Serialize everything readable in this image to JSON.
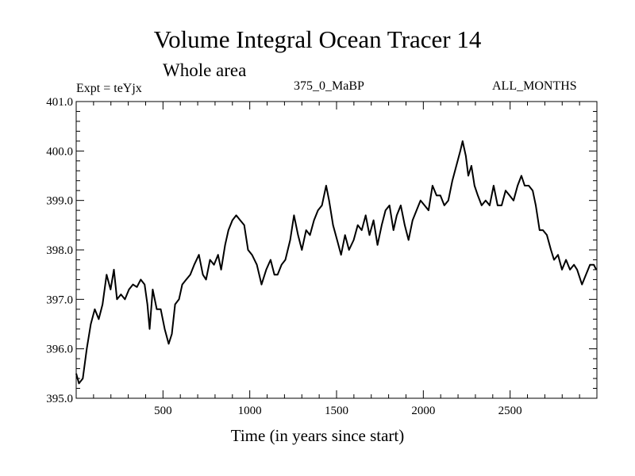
{
  "chart_data": {
    "type": "line",
    "title": "Volume Integral Ocean Tracer 14",
    "subtitle": "Whole area",
    "annotations": {
      "experiment": "Expt = teYjx",
      "run": "375_0_MaBP",
      "months": "ALL_MONTHS"
    },
    "xlabel": "Time (in years since start)",
    "ylabel": "",
    "xlim": [
      0,
      3000
    ],
    "ylim": [
      395.0,
      401.0
    ],
    "xticks": [
      500,
      1000,
      1500,
      2000,
      2500
    ],
    "xtick_labels": [
      "500",
      "1000",
      "1500",
      "2000",
      "2500"
    ],
    "yticks": [
      395,
      396,
      397,
      398,
      399,
      400,
      401
    ],
    "ytick_labels": [
      "395.0",
      "396.0",
      "397.0",
      "398.0",
      "399.0",
      "400.0",
      "401.0"
    ],
    "x_minor_step": 100,
    "y_minor_step": 0.2,
    "grid": false,
    "line_color": "#000000",
    "series": [
      {
        "name": "Tracer 14",
        "x": [
          0,
          16,
          38,
          61,
          84,
          107,
          130,
          152,
          175,
          198,
          217,
          235,
          258,
          281,
          304,
          327,
          350,
          372,
          394,
          410,
          423,
          441,
          464,
          487,
          510,
          533,
          551,
          570,
          592,
          611,
          634,
          657,
          680,
          707,
          730,
          748,
          771,
          794,
          817,
          835,
          858,
          877,
          900,
          922,
          945,
          968,
          990,
          1013,
          1041,
          1068,
          1095,
          1120,
          1142,
          1160,
          1183,
          1205,
          1233,
          1255,
          1278,
          1300,
          1325,
          1347,
          1370,
          1393,
          1416,
          1440,
          1457,
          1480,
          1503,
          1526,
          1549,
          1572,
          1599,
          1622,
          1645,
          1668,
          1690,
          1713,
          1736,
          1760,
          1782,
          1805,
          1828,
          1847,
          1870,
          1893,
          1915,
          1938,
          1961,
          1984,
          2007,
          2030,
          2053,
          2076,
          2098,
          2121,
          2144,
          2167,
          2190,
          2213,
          2226,
          2245,
          2259,
          2277,
          2295,
          2314,
          2336,
          2359,
          2382,
          2405,
          2428,
          2451,
          2474,
          2497,
          2520,
          2543,
          2565,
          2584,
          2607,
          2630,
          2648,
          2670,
          2689,
          2712,
          2735,
          2753,
          2776,
          2799,
          2822,
          2845,
          2868,
          2886,
          2914,
          2937,
          2960,
          2982,
          2996
        ],
        "values": [
          395.5,
          395.3,
          395.4,
          396.0,
          396.5,
          396.8,
          396.6,
          396.9,
          397.5,
          397.2,
          397.6,
          397.0,
          397.1,
          397.0,
          397.2,
          397.3,
          397.25,
          397.4,
          397.3,
          396.9,
          396.4,
          397.2,
          396.8,
          396.8,
          396.4,
          396.1,
          396.3,
          396.9,
          397.0,
          397.3,
          397.4,
          397.5,
          397.7,
          397.9,
          397.5,
          397.4,
          397.8,
          397.7,
          397.9,
          397.6,
          398.1,
          398.4,
          398.6,
          398.7,
          398.6,
          398.5,
          398.0,
          397.9,
          397.7,
          397.3,
          397.6,
          397.8,
          397.5,
          397.5,
          397.7,
          397.8,
          398.2,
          398.7,
          398.3,
          398.0,
          398.4,
          398.3,
          398.6,
          398.8,
          398.9,
          399.3,
          399.0,
          398.5,
          398.2,
          397.9,
          398.3,
          398.0,
          398.2,
          398.5,
          398.4,
          398.7,
          398.3,
          398.6,
          398.1,
          398.5,
          398.8,
          398.9,
          398.4,
          398.7,
          398.9,
          398.5,
          398.2,
          398.6,
          398.8,
          399.0,
          398.9,
          398.8,
          399.3,
          399.1,
          399.1,
          398.9,
          399.0,
          399.4,
          399.7,
          400.0,
          400.2,
          399.9,
          399.5,
          399.7,
          399.3,
          399.1,
          398.9,
          399.0,
          398.9,
          399.3,
          398.9,
          398.9,
          399.2,
          399.1,
          399.0,
          399.3,
          399.5,
          399.3,
          399.3,
          399.2,
          398.9,
          398.4,
          398.4,
          398.3,
          398.0,
          397.8,
          397.9,
          397.6,
          397.8,
          397.6,
          397.7,
          397.6,
          397.3,
          397.5,
          397.7,
          397.7,
          397.6
        ]
      }
    ]
  }
}
